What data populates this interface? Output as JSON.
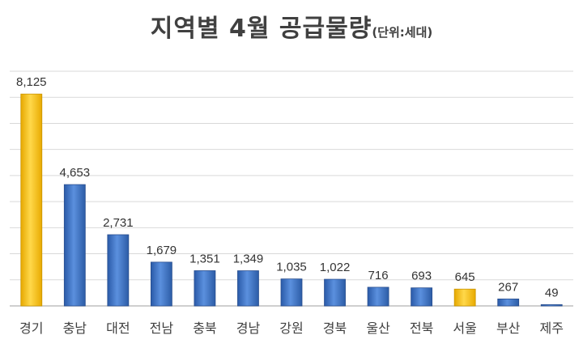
{
  "chart_data": {
    "type": "bar",
    "title": "지역별 4월 공급물량",
    "subtitle": "(단위:세대)",
    "xlabel": "",
    "ylabel": "",
    "ylim": [
      0,
      9000
    ],
    "grid": true,
    "categories": [
      "경기",
      "충남",
      "대전",
      "전남",
      "충북",
      "경남",
      "강원",
      "경북",
      "울산",
      "전북",
      "서울",
      "부산",
      "제주"
    ],
    "values": [
      8125,
      4653,
      2731,
      1679,
      1351,
      1349,
      1035,
      1022,
      716,
      693,
      645,
      267,
      49
    ],
    "value_labels": [
      "8,125",
      "4,653",
      "2,731",
      "1,679",
      "1,351",
      "1,349",
      "1,035",
      "1,022",
      "716",
      "693",
      "645",
      "267",
      "49"
    ],
    "bar_colors": [
      "#ffc000",
      "#3a70c6",
      "#3a70c6",
      "#3a70c6",
      "#3a70c6",
      "#3a70c6",
      "#3a70c6",
      "#3a70c6",
      "#3a70c6",
      "#3a70c6",
      "#ffc000",
      "#3a70c6",
      "#3a70c6"
    ],
    "highlight_color": "#ffc000",
    "bar_color": "#3a70c6"
  }
}
